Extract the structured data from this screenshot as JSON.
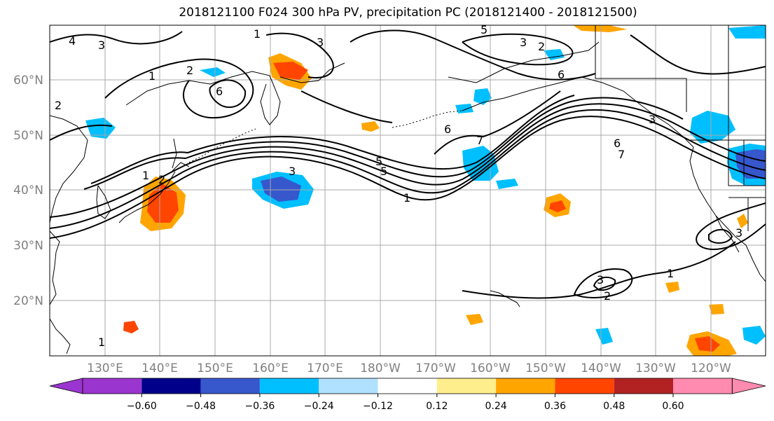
{
  "title": "2018121100 F024 300 hPa PV, precipitation PC (2018121400 - 2018121500)",
  "lat_labels": [
    "60°N",
    "50°N",
    "40°N",
    "30°N",
    "20°N"
  ],
  "lon_labels": [
    "130°E",
    "140°E",
    "150°E",
    "160°E",
    "170°E",
    "180°W",
    "170°W",
    "160°W",
    "150°W",
    "140°W",
    "130°W",
    "120°W"
  ],
  "colorbar": {
    "colors": [
      "#9b35cf",
      "#00008b",
      "#3757cc",
      "#00bfff",
      "#b0e2ff",
      "#ffffff",
      "#ffee8c",
      "#ffa500",
      "#ff4500",
      "#b22222",
      "#ff8bb0"
    ],
    "tick_labels": [
      "−0.60",
      "−0.48",
      "−0.36",
      "−0.24",
      "−0.12",
      "0.12",
      "0.24",
      "0.36",
      "0.48",
      "0.60"
    ]
  },
  "contour_labels": [
    "4",
    "3",
    "1",
    "3",
    "5",
    "1",
    "2",
    "6",
    "2",
    "3",
    "2",
    "3",
    "6",
    "6",
    "5",
    "5",
    "3",
    "1",
    "7",
    "6",
    "7",
    "1",
    "2",
    "3",
    "1",
    "2",
    "3",
    "1"
  ]
}
